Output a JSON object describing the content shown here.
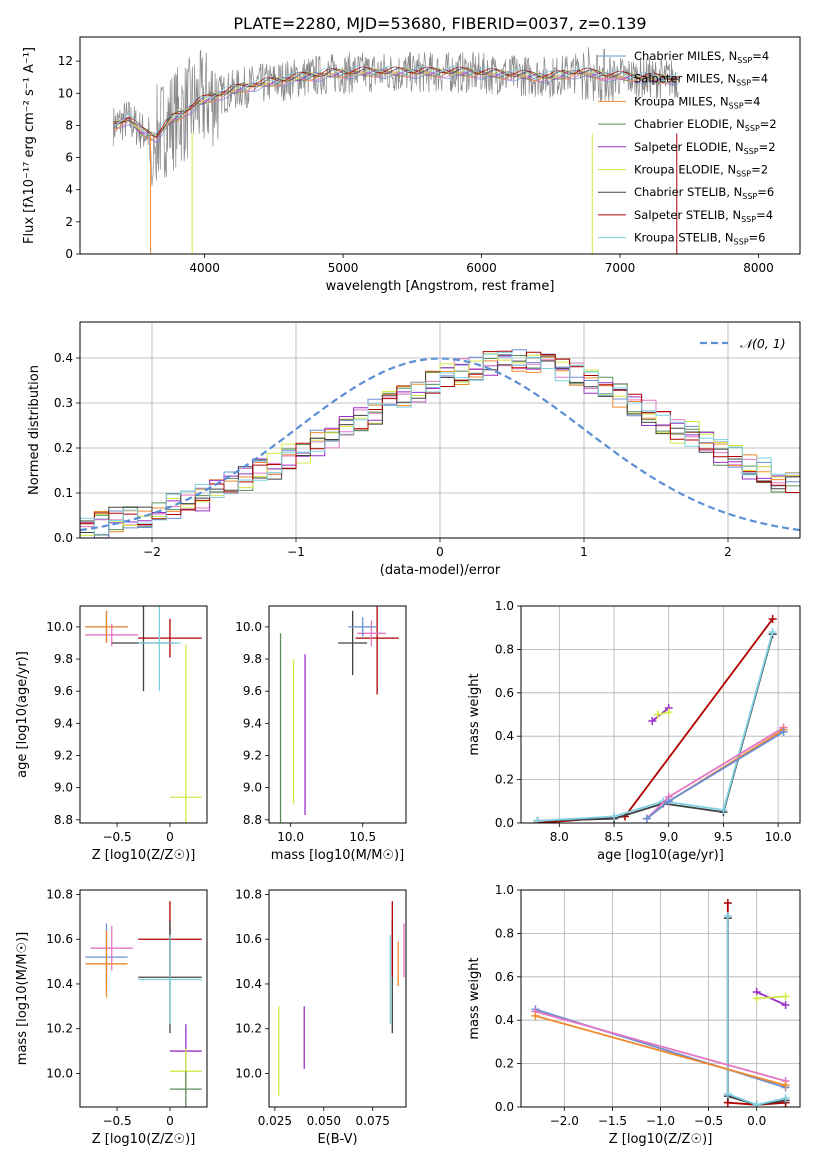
{
  "figure_title": "PLATE=2280, MJD=53680, FIBERID=0037, z=0.139",
  "colors": {
    "Chabrier MILES": "#6b8fd6",
    "Salpeter MILES": "#e377c2",
    "Kroupa MILES": "#f08a2c",
    "Chabrier ELODIE": "#5a8f5a",
    "Salpeter ELODIE": "#9b30c8",
    "Kroupa ELODIE": "#d4e84a",
    "Chabrier STELIB": "#404040",
    "Salpeter STELIB": "#b00000",
    "Kroupa STELIB": "#7fd0e0",
    "normal": "#5b8fd6",
    "spectrum": "#888888"
  },
  "chart_data": [
    {
      "type": "line",
      "title": "PLATE=2280, MJD=53680, FIBERID=0037, z=0.139",
      "xlabel": "wavelength [Angstrom, rest frame]",
      "ylabel": "Flux [fλ10⁻¹⁷ erg cm⁻² s⁻¹ A⁻¹]",
      "xlim": [
        3100,
        8300
      ],
      "ylim": [
        0,
        13.5
      ],
      "xticks": [
        4000,
        5000,
        6000,
        7000,
        8000
      ],
      "yticks": [
        0,
        2,
        4,
        6,
        8,
        10,
        12
      ],
      "legend_position": "top-right",
      "legend": [
        "Chabrier MILES, N_SSP=4",
        "Salpeter MILES, N_SSP=4",
        "Kroupa MILES, N_SSP=4",
        "Chabrier ELODIE, N_SSP=2",
        "Salpeter ELODIE, N_SSP=2",
        "Kroupa ELODIE, N_SSP=2",
        "Chabrier STELIB, N_SSP=6",
        "Salpeter STELIB, N_SSP=4",
        "Kroupa STELIB, N_SSP=6"
      ],
      "continuum": [
        [
          3350,
          8.0
        ],
        [
          3450,
          8.4
        ],
        [
          3550,
          7.6
        ],
        [
          3650,
          7.3
        ],
        [
          3750,
          8.3
        ],
        [
          3850,
          8.8
        ],
        [
          3950,
          9.4
        ],
        [
          4100,
          9.9
        ],
        [
          4300,
          10.4
        ],
        [
          4500,
          10.7
        ],
        [
          4700,
          11.0
        ],
        [
          4900,
          11.2
        ],
        [
          5100,
          11.3
        ],
        [
          5300,
          11.3
        ],
        [
          5500,
          11.3
        ],
        [
          5700,
          11.3
        ],
        [
          5900,
          11.3
        ],
        [
          6100,
          11.2
        ],
        [
          6300,
          11.1
        ],
        [
          6500,
          11.0
        ],
        [
          6700,
          11.3
        ],
        [
          6900,
          11.1
        ],
        [
          7100,
          11.0
        ],
        [
          7300,
          10.9
        ]
      ]
    },
    {
      "type": "bar",
      "xlabel": "(data-model)/error",
      "ylabel": "Normed distribution",
      "xlim": [
        -2.5,
        2.5
      ],
      "ylim": [
        0,
        0.48
      ],
      "xticks": [
        -2,
        -1,
        0,
        1,
        2
      ],
      "yticks": [
        0.0,
        0.1,
        0.2,
        0.3,
        0.4
      ],
      "grid": true,
      "legend_position": "top-right",
      "legend": [
        "𝒩(0, 1)"
      ],
      "bin_edges_step": 0.1,
      "bin_edges_start": -2.5,
      "histogram_approx": [
        0.03,
        0.03,
        0.04,
        0.04,
        0.05,
        0.06,
        0.07,
        0.08,
        0.09,
        0.1,
        0.12,
        0.13,
        0.15,
        0.16,
        0.18,
        0.19,
        0.21,
        0.23,
        0.24,
        0.26,
        0.28,
        0.3,
        0.32,
        0.33,
        0.35,
        0.36,
        0.37,
        0.38,
        0.39,
        0.4,
        0.4,
        0.39,
        0.38,
        0.37,
        0.36,
        0.35,
        0.33,
        0.32,
        0.3,
        0.28,
        0.26,
        0.24,
        0.23,
        0.21,
        0.19,
        0.18,
        0.16,
        0.15,
        0.13,
        0.12
      ]
    },
    {
      "type": "scatter",
      "xlabel": "Z [log10(Z/Z☉)]",
      "ylabel": "age  [log10(age/yr)]",
      "xlim": [
        -0.85,
        0.35
      ],
      "ylim": [
        8.78,
        10.13
      ],
      "xticks": [
        -0.5,
        0.0
      ],
      "yticks": [
        8.8,
        9.0,
        9.2,
        9.4,
        9.6,
        9.8,
        10.0
      ],
      "points": [
        {
          "model": "Chabrier MILES",
          "x": -0.6,
          "xerr": 0.2,
          "y": 10.0,
          "yerr": 0.1
        },
        {
          "model": "Salpeter MILES",
          "x": -0.55,
          "xerr": 0.25,
          "y": 9.95,
          "yerr": 0.07
        },
        {
          "model": "Kroupa MILES",
          "x": -0.6,
          "xerr": 0.2,
          "y": 10.0,
          "yerr": 0.1
        },
        {
          "model": "Chabrier STELIB",
          "x": -0.25,
          "xerr": 0.3,
          "y": 9.9,
          "yerr": 0.3
        },
        {
          "model": "Salpeter STELIB",
          "x": 0.0,
          "xerr": 0.3,
          "y": 9.93,
          "yerr": 0.12
        },
        {
          "model": "Kroupa STELIB",
          "x": -0.1,
          "xerr": 0.2,
          "y": 9.9,
          "yerr": 0.3
        },
        {
          "model": "Kroupa ELODIE",
          "x": 0.15,
          "xerr": 0.15,
          "y": 8.94,
          "yerr": 0.95
        }
      ]
    },
    {
      "type": "scatter",
      "xlabel": "mass [log10(M/M☉)]",
      "xlim": [
        9.85,
        10.8
      ],
      "ylim": [
        8.78,
        10.13
      ],
      "xticks": [
        10.0,
        10.5
      ],
      "yticks": [
        8.8,
        9.0,
        9.2,
        9.4,
        9.6,
        9.8,
        10.0
      ],
      "points": [
        {
          "model": "Chabrier ELODIE",
          "x": 9.93,
          "y": 9.36,
          "yerr": 0.6
        },
        {
          "model": "Kroupa ELODIE",
          "x": 10.02,
          "y": 9.35,
          "yerr": 0.45
        },
        {
          "model": "Salpeter ELODIE",
          "x": 10.1,
          "y": 9.33,
          "yerr": 0.5
        },
        {
          "model": "Chabrier STELIB",
          "x": 10.43,
          "xerr": 0.1,
          "y": 9.9,
          "yerr": 0.2
        },
        {
          "model": "Salpeter STELIB",
          "x": 10.6,
          "xerr": 0.15,
          "y": 9.93,
          "yerr": 0.35
        },
        {
          "model": "Salpeter MILES",
          "x": 10.56,
          "xerr": 0.1,
          "y": 9.96,
          "yerr": 0.08
        },
        {
          "model": "Chabrier MILES",
          "x": 10.5,
          "xerr": 0.1,
          "y": 10.0,
          "yerr": 0.06
        }
      ]
    },
    {
      "type": "line",
      "xlabel": "age  [log10(age/yr)]",
      "ylabel": "mass weight",
      "xlim": [
        7.65,
        10.2
      ],
      "ylim": [
        0,
        1.0
      ],
      "xticks": [
        8.0,
        8.5,
        9.0,
        9.5,
        10.0
      ],
      "yticks": [
        0.0,
        0.2,
        0.4,
        0.6,
        0.8,
        1.0
      ],
      "grid": true,
      "series": [
        {
          "model": "Salpeter STELIB",
          "x": [
            7.8,
            8.6,
            9.95
          ],
          "y": [
            0.0,
            0.03,
            0.94
          ]
        },
        {
          "model": "Chabrier STELIB",
          "x": [
            7.8,
            8.5,
            8.95,
            9.5,
            9.95
          ],
          "y": [
            0.01,
            0.02,
            0.09,
            0.05,
            0.87
          ]
        },
        {
          "model": "Kroupa STELIB",
          "x": [
            7.8,
            8.5,
            8.95,
            9.5,
            9.95
          ],
          "y": [
            0.01,
            0.03,
            0.1,
            0.06,
            0.88
          ]
        },
        {
          "model": "Salpeter MILES",
          "x": [
            8.8,
            9.0,
            10.05
          ],
          "y": [
            0.02,
            0.12,
            0.44
          ]
        },
        {
          "model": "Kroupa MILES",
          "x": [
            8.8,
            9.0,
            10.05
          ],
          "y": [
            0.02,
            0.1,
            0.43
          ]
        },
        {
          "model": "Chabrier MILES",
          "x": [
            8.8,
            9.0,
            10.05
          ],
          "y": [
            0.02,
            0.1,
            0.42
          ]
        },
        {
          "model": "Salpeter ELODIE",
          "x": [
            8.85,
            9.0
          ],
          "y": [
            0.47,
            0.53
          ]
        },
        {
          "model": "Kroupa ELODIE",
          "x": [
            8.9,
            9.0
          ],
          "y": [
            0.5,
            0.51
          ]
        }
      ]
    },
    {
      "type": "scatter",
      "xlabel": "Z [log10(Z/Z☉)]",
      "ylabel": "mass [log10(M/M☉)]",
      "xlim": [
        -0.85,
        0.35
      ],
      "ylim": [
        9.85,
        10.82
      ],
      "xticks": [
        -0.5,
        0.0
      ],
      "yticks": [
        10.0,
        10.2,
        10.4,
        10.6,
        10.8
      ],
      "points": [
        {
          "model": "Chabrier MILES",
          "x": -0.6,
          "xerr": 0.2,
          "y": 10.52,
          "yerr": 0.15
        },
        {
          "model": "Salpeter MILES",
          "x": -0.55,
          "xerr": 0.2,
          "y": 10.56,
          "yerr": 0.1
        },
        {
          "model": "Kroupa MILES",
          "x": -0.6,
          "xerr": 0.2,
          "y": 10.49,
          "yerr": 0.15
        },
        {
          "model": "Salpeter STELIB",
          "x": 0.0,
          "xerr": 0.3,
          "y": 10.6,
          "yerr": 0.17
        },
        {
          "model": "Chabrier STELIB",
          "x": 0.0,
          "xerr": 0.3,
          "y": 10.43,
          "yerr": 0.25
        },
        {
          "model": "Kroupa STELIB",
          "x": 0.0,
          "xerr": 0.3,
          "y": 10.42,
          "yerr": 0.2
        },
        {
          "model": "Salpeter ELODIE",
          "x": 0.15,
          "xerr": 0.15,
          "y": 10.1,
          "yerr": 0.12
        },
        {
          "model": "Kroupa ELODIE",
          "x": 0.15,
          "xerr": 0.15,
          "y": 10.01,
          "yerr": 0.1
        },
        {
          "model": "Chabrier ELODIE",
          "x": 0.15,
          "xerr": 0.15,
          "y": 9.93,
          "yerr": 0.08
        }
      ]
    },
    {
      "type": "scatter",
      "xlabel": "E(B-V)",
      "xlim": [
        0.022,
        0.092
      ],
      "ylim": [
        9.85,
        10.82
      ],
      "xticks": [
        0.025,
        0.05,
        0.075
      ],
      "yticks": [
        10.0,
        10.2,
        10.4,
        10.6,
        10.8
      ],
      "points": [
        {
          "model": "Kroupa ELODIE",
          "x": 0.027,
          "y": 10.1,
          "yerr": 0.2
        },
        {
          "model": "Salpeter ELODIE",
          "x": 0.04,
          "y": 10.16,
          "yerr": 0.14
        },
        {
          "model": "Chabrier STELIB",
          "x": 0.085,
          "y": 10.43,
          "yerr": 0.25
        },
        {
          "model": "Salpeter STELIB",
          "x": 0.085,
          "y": 10.6,
          "yerr": 0.17
        },
        {
          "model": "Kroupa STELIB",
          "x": 0.084,
          "y": 10.42,
          "yerr": 0.2
        },
        {
          "model": "Kroupa MILES",
          "x": 0.088,
          "y": 10.49,
          "yerr": 0.1
        },
        {
          "model": "Salpeter MILES",
          "x": 0.091,
          "y": 10.55,
          "yerr": 0.12
        }
      ]
    },
    {
      "type": "line",
      "xlabel": "Z [log10(Z/Z☉)]",
      "ylabel": "mass weight",
      "xlim": [
        -2.45,
        0.45
      ],
      "ylim": [
        0,
        1.0
      ],
      "xticks": [
        -2.0,
        -1.5,
        -1.0,
        -0.5,
        0.0
      ],
      "yticks": [
        0.0,
        0.2,
        0.4,
        0.6,
        0.8,
        1.0
      ],
      "grid": true,
      "series": [
        {
          "model": "Salpeter STELIB",
          "x": [
            -0.3,
            -0.3,
            0.0,
            0.3
          ],
          "y": [
            0.94,
            0.02,
            0.01,
            0.02
          ]
        },
        {
          "model": "Chabrier STELIB",
          "x": [
            -0.3,
            -0.3,
            0.0,
            0.3
          ],
          "y": [
            0.87,
            0.05,
            0.01,
            0.03
          ]
        },
        {
          "model": "Kroupa STELIB",
          "x": [
            -0.3,
            -0.3,
            0.0,
            0.3
          ],
          "y": [
            0.88,
            0.06,
            0.01,
            0.04
          ]
        },
        {
          "model": "Chabrier MILES",
          "x": [
            -2.3,
            0.3
          ],
          "y": [
            0.45,
            0.09
          ]
        },
        {
          "model": "Salpeter MILES",
          "x": [
            -2.3,
            0.3
          ],
          "y": [
            0.44,
            0.12
          ]
        },
        {
          "model": "Kroupa MILES",
          "x": [
            -2.3,
            0.3
          ],
          "y": [
            0.42,
            0.1
          ]
        },
        {
          "model": "Salpeter ELODIE",
          "x": [
            0.0,
            0.3
          ],
          "y": [
            0.53,
            0.47
          ]
        },
        {
          "model": "Kroupa ELODIE",
          "x": [
            0.0,
            0.3
          ],
          "y": [
            0.5,
            0.51
          ]
        }
      ]
    }
  ]
}
